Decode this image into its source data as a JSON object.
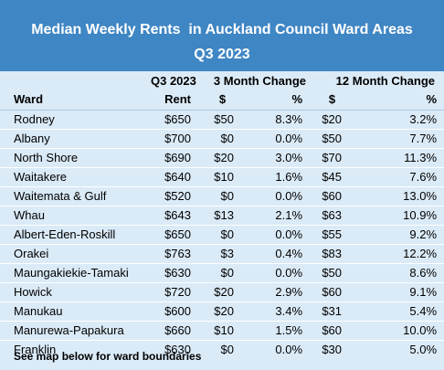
{
  "title_line1": "Median Weekly Rents  in Auckland Council Ward Areas",
  "title_line2": "Q3 2023",
  "headers": {
    "row1": {
      "rent": "Q3 2023",
      "change3": "3 Month Change",
      "change12": "12 Month Change"
    },
    "row2": {
      "ward": "Ward",
      "rent": "Rent",
      "d3": "$",
      "p3": "%",
      "d12": "$",
      "p12": "%"
    }
  },
  "rows": [
    {
      "ward": "Rodney",
      "rent": "$650",
      "d3": "$50",
      "p3": "8.3%",
      "d12": "$20",
      "p12": "3.2%"
    },
    {
      "ward": "Albany",
      "rent": "$700",
      "d3": "$0",
      "p3": "0.0%",
      "d12": "$50",
      "p12": "7.7%"
    },
    {
      "ward": "North Shore",
      "rent": "$690",
      "d3": "$20",
      "p3": "3.0%",
      "d12": "$70",
      "p12": "11.3%"
    },
    {
      "ward": "Waitakere",
      "rent": "$640",
      "d3": "$10",
      "p3": "1.6%",
      "d12": "$45",
      "p12": "7.6%"
    },
    {
      "ward": "Waitemata & Gulf",
      "rent": "$520",
      "d3": "$0",
      "p3": "0.0%",
      "d12": "$60",
      "p12": "13.0%"
    },
    {
      "ward": "Whau",
      "rent": "$643",
      "d3": "$13",
      "p3": "2.1%",
      "d12": "$63",
      "p12": "10.9%"
    },
    {
      "ward": "Albert-Eden-Roskill",
      "rent": "$650",
      "d3": "$0",
      "p3": "0.0%",
      "d12": "$55",
      "p12": "9.2%"
    },
    {
      "ward": "Orakei",
      "rent": "$763",
      "d3": "$3",
      "p3": "0.4%",
      "d12": "$83",
      "p12": "12.2%"
    },
    {
      "ward": "Maungakiekie-Tamaki",
      "rent": "$630",
      "d3": "$0",
      "p3": "0.0%",
      "d12": "$50",
      "p12": "8.6%"
    },
    {
      "ward": "Howick",
      "rent": "$720",
      "d3": "$20",
      "p3": "2.9%",
      "d12": "$60",
      "p12": "9.1%"
    },
    {
      "ward": "Manukau",
      "rent": "$600",
      "d3": "$20",
      "p3": "3.4%",
      "d12": "$31",
      "p12": "5.4%"
    },
    {
      "ward": "Manurewa-Papakura",
      "rent": "$660",
      "d3": "$10",
      "p3": "1.5%",
      "d12": "$60",
      "p12": "10.0%"
    },
    {
      "ward": "Franklin",
      "rent": "$630",
      "d3": "$0",
      "p3": "0.0%",
      "d12": "$30",
      "p12": "5.0%"
    }
  ],
  "footnote": "See map below for ward boundaries",
  "colors": {
    "title_band": "#3f86c4",
    "table_background": "#daeaf7",
    "title_text": "#ffffff"
  }
}
